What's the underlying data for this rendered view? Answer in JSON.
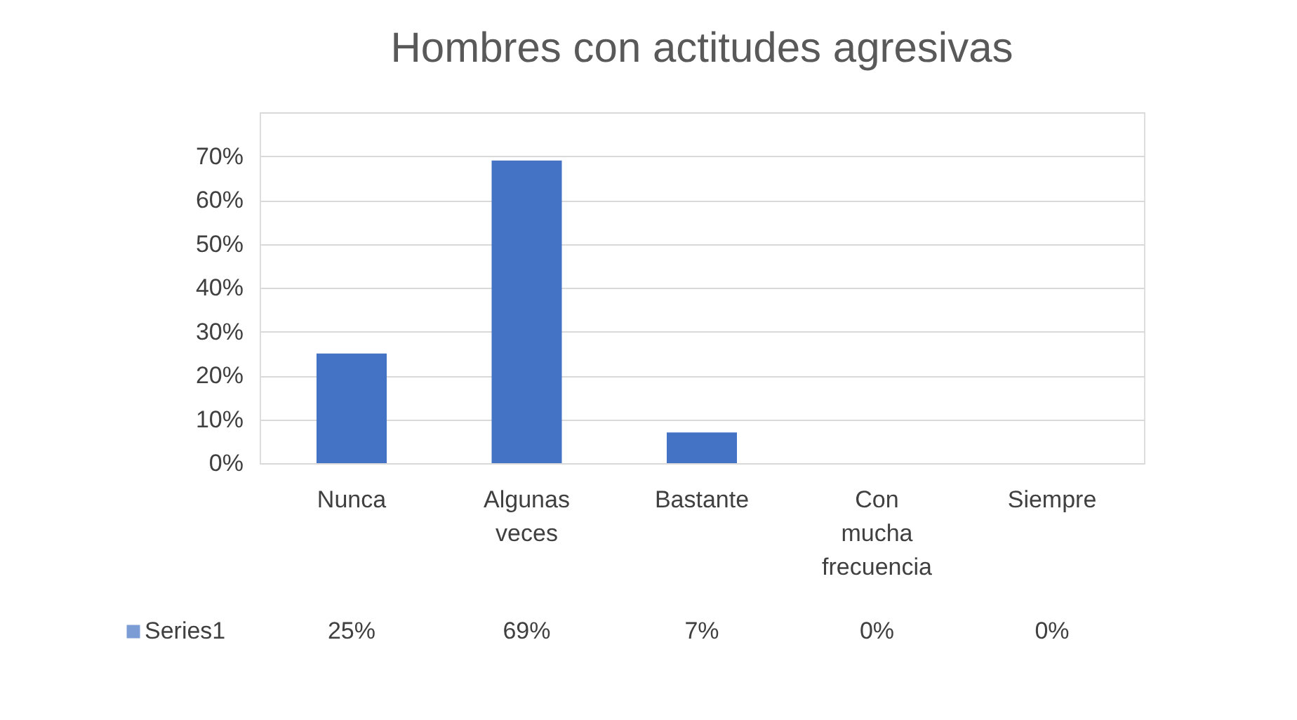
{
  "chart_data": {
    "type": "bar",
    "title": "Hombres con actitudes agresivas",
    "categories": [
      "Nunca",
      "Algunas veces",
      "Bastante",
      "Con mucha frecuencia",
      "Siempre"
    ],
    "series": [
      {
        "name": "Series1",
        "color": "#4472c4",
        "values": [
          25,
          69,
          7,
          0,
          0
        ],
        "value_labels": [
          "25%",
          "69%",
          "7%",
          "0%",
          "0%"
        ]
      }
    ],
    "ylim": [
      0,
      80
    ],
    "yticks": [
      {
        "value": 0,
        "label": "0%"
      },
      {
        "value": 10,
        "label": "10%"
      },
      {
        "value": 20,
        "label": "20%"
      },
      {
        "value": 30,
        "label": "30%"
      },
      {
        "value": 40,
        "label": "40%"
      },
      {
        "value": 50,
        "label": "50%"
      },
      {
        "value": 60,
        "label": "60%"
      },
      {
        "value": 70,
        "label": "70%"
      },
      {
        "value": 80,
        "label": null
      }
    ],
    "grid": "y",
    "legend": "bottom left"
  }
}
